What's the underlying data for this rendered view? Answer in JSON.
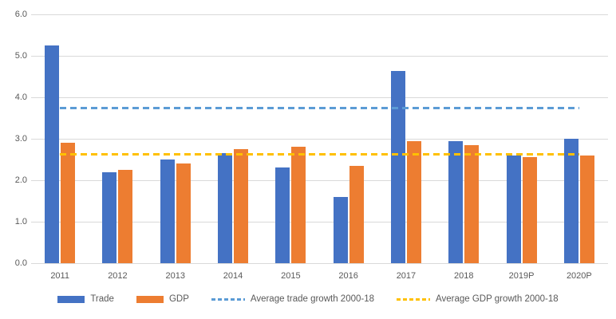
{
  "chart_data": {
    "type": "bar",
    "title": "",
    "xlabel": "",
    "ylabel": "",
    "categories": [
      "2011",
      "2012",
      "2013",
      "2014",
      "2015",
      "2016",
      "2017",
      "2018",
      "2019P",
      "2020P"
    ],
    "series": [
      {
        "name": "Trade",
        "color": "#4472C4",
        "values": [
          5.25,
          2.2,
          2.5,
          2.65,
          2.3,
          1.6,
          4.63,
          2.95,
          2.6,
          3.0
        ]
      },
      {
        "name": "GDP",
        "color": "#ED7D31",
        "values": [
          2.9,
          2.25,
          2.4,
          2.75,
          2.8,
          2.35,
          2.95,
          2.85,
          2.55,
          2.6
        ]
      }
    ],
    "reference_lines": [
      {
        "name": "Average trade growth 2000-18",
        "value": 3.75,
        "color": "#5B9BD5",
        "style": "dashed"
      },
      {
        "name": "Average GDP growth 2000-18",
        "value": 2.63,
        "color": "#FFC000",
        "style": "dashed"
      }
    ],
    "ylim": [
      0,
      6
    ],
    "ytick_step": 1.0,
    "ytick_labels": [
      "0.0",
      "1.0",
      "2.0",
      "3.0",
      "4.0",
      "5.0",
      "6.0"
    ],
    "grid": true,
    "gridline_color": "#D9D9D9",
    "axis_label_color": "#595959",
    "legend_position": "bottom",
    "legend_entries": [
      "Trade",
      "GDP",
      "Average trade growth 2000-18",
      "Average GDP growth 2000-18"
    ]
  }
}
